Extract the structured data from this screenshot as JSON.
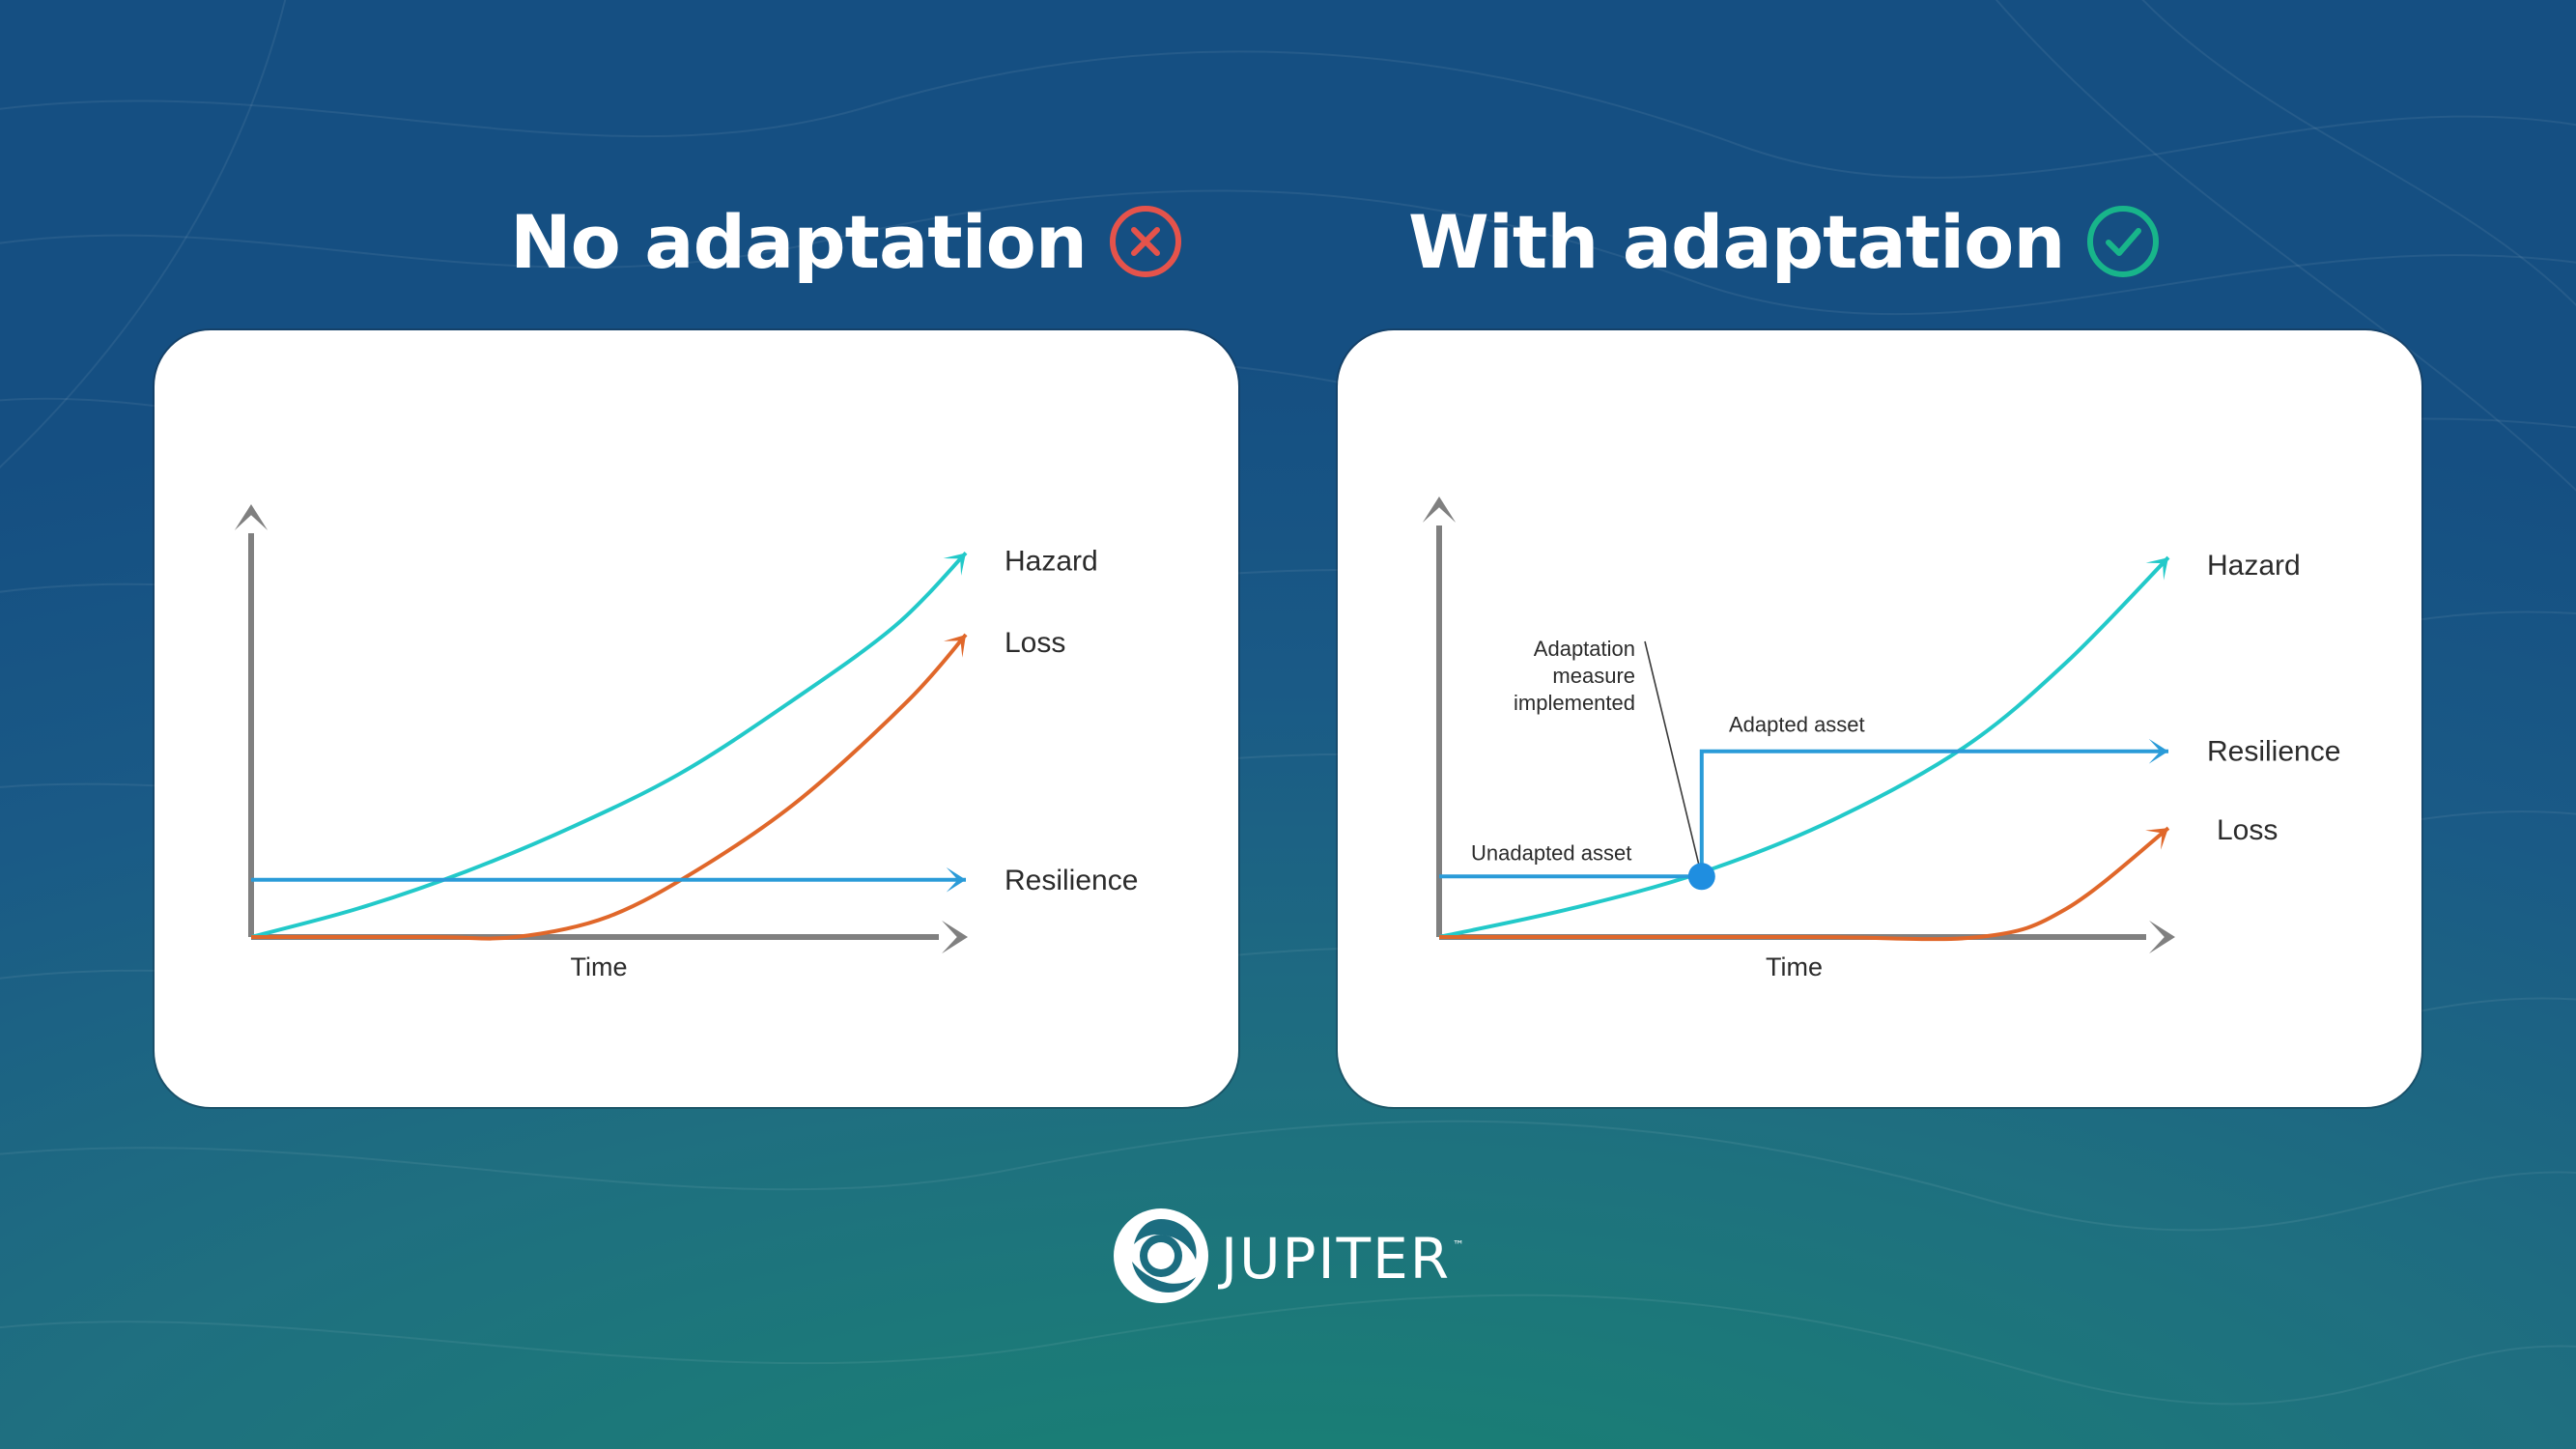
{
  "headings": {
    "left": "No adaptation",
    "right": "With adaptation"
  },
  "icons": {
    "left_status": "x-circle-icon",
    "right_status": "check-circle-icon",
    "left_color": "#e5534b",
    "right_color": "#18b58a"
  },
  "colors": {
    "hazard": "#22c9c9",
    "loss": "#e0672a",
    "resilience": "#2a9bd8",
    "axis": "#808080"
  },
  "chart_data": [
    {
      "type": "line",
      "title": "No adaptation",
      "xlabel": "Time",
      "ylabel": "",
      "series_labels": {
        "hazard": "Hazard",
        "loss": "Loss",
        "resilience": "Resilience"
      },
      "series": [
        {
          "name": "Hazard",
          "values": [
            0.0,
            0.07,
            0.16,
            0.27,
            0.4,
            0.57,
            0.76,
            0.94
          ],
          "x": [
            0,
            0.15,
            0.3,
            0.45,
            0.6,
            0.75,
            0.9,
            1.0
          ]
        },
        {
          "name": "Loss",
          "values": [
            0.0,
            0.0,
            0.0,
            0.05,
            0.17,
            0.34,
            0.58,
            0.74
          ],
          "x": [
            0,
            0.25,
            0.37,
            0.5,
            0.63,
            0.77,
            0.92,
            1.0
          ]
        },
        {
          "name": "Resilience",
          "values": [
            0.14,
            0.14
          ],
          "x": [
            0,
            1.0
          ]
        }
      ],
      "xlim": [
        0,
        1
      ],
      "ylim": [
        0,
        1
      ]
    },
    {
      "type": "line",
      "title": "With adaptation",
      "xlabel": "Time",
      "ylabel": "",
      "series_labels": {
        "hazard": "Hazard",
        "loss": "Loss",
        "resilience": "Resilience"
      },
      "annotations": {
        "measure": [
          "Adaptation",
          "measure",
          "implemented"
        ],
        "unadapted": "Unadapted asset",
        "adapted": "Adapted asset"
      },
      "series": [
        {
          "name": "Hazard",
          "values": [
            0.0,
            0.07,
            0.16,
            0.29,
            0.47,
            0.68,
            0.94
          ],
          "x": [
            0,
            0.18,
            0.36,
            0.54,
            0.72,
            0.86,
            1.0
          ]
        },
        {
          "name": "Loss",
          "values": [
            0.0,
            0.0,
            0.0,
            0.07,
            0.27
          ],
          "x": [
            0,
            0.5,
            0.74,
            0.86,
            1.0
          ]
        },
        {
          "name": "Resilience",
          "values": [
            0.15,
            0.15,
            0.46,
            0.46
          ],
          "x": [
            0,
            0.36,
            0.36,
            1.0
          ]
        }
      ],
      "measure_point_x": 0.36,
      "xlim": [
        0,
        1
      ],
      "ylim": [
        0,
        1
      ]
    }
  ],
  "logo": {
    "text": "JUPITER",
    "tm": "™",
    "icon": "jupiter-logo-icon"
  }
}
